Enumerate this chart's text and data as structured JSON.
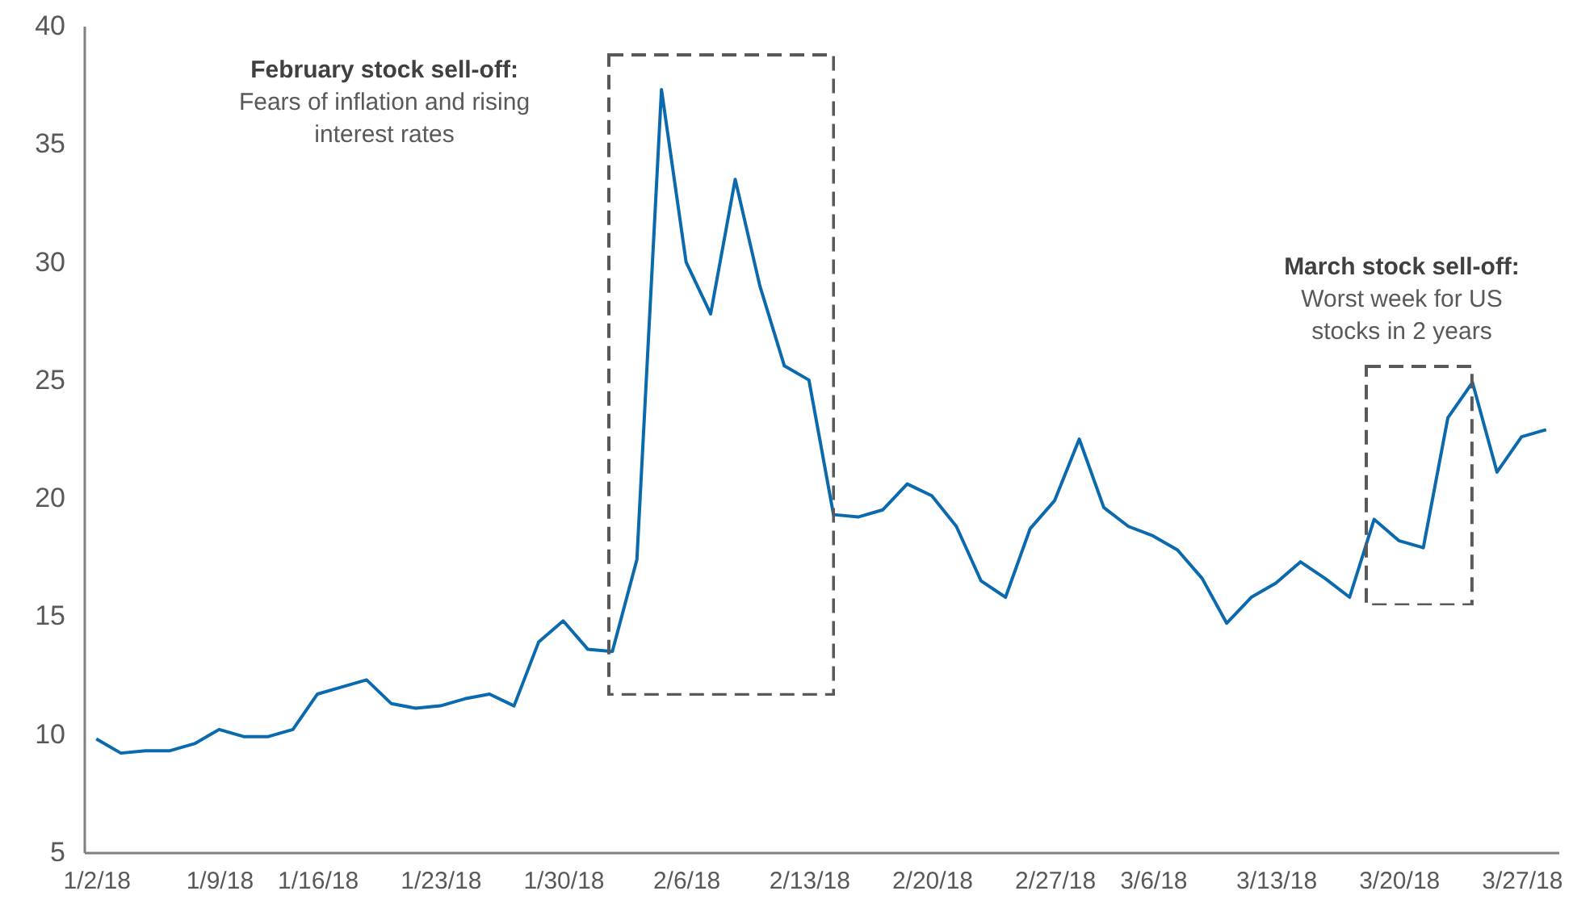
{
  "chart_data": {
    "type": "line",
    "categories": [
      "1/2/18",
      null,
      null,
      null,
      null,
      "1/9/18",
      null,
      null,
      null,
      "1/16/18",
      null,
      null,
      null,
      null,
      "1/23/18",
      null,
      null,
      null,
      null,
      "1/30/18",
      null,
      null,
      null,
      null,
      "2/6/18",
      null,
      null,
      null,
      null,
      "2/13/18",
      null,
      null,
      null,
      null,
      "2/20/18",
      null,
      null,
      null,
      null,
      "2/27/18",
      null,
      null,
      null,
      "3/6/18",
      null,
      null,
      null,
      null,
      "3/13/18",
      null,
      null,
      null,
      null,
      "3/20/18",
      null,
      null,
      null,
      null,
      "3/27/18",
      null
    ],
    "series": [
      {
        "color": "#0a6aad",
        "values": [
          9.8,
          9.2,
          9.3,
          9.3,
          9.6,
          10.2,
          9.9,
          9.9,
          10.2,
          11.7,
          12.0,
          12.3,
          11.3,
          11.1,
          11.2,
          11.5,
          11.7,
          11.2,
          13.9,
          14.8,
          13.6,
          13.5,
          17.4,
          37.3,
          30.0,
          27.8,
          33.5,
          29.0,
          25.6,
          25.0,
          19.3,
          19.2,
          19.5,
          20.6,
          20.1,
          18.8,
          16.5,
          15.8,
          18.7,
          19.9,
          22.5,
          19.6,
          18.8,
          18.4,
          17.8,
          16.6,
          14.7,
          15.8,
          16.4,
          17.3,
          16.6,
          15.8,
          19.1,
          18.2,
          17.9,
          23.4,
          24.9,
          21.1,
          22.6,
          22.9
        ]
      }
    ],
    "ylim": [
      5,
      40
    ],
    "yticks": [
      5,
      10,
      15,
      20,
      25,
      30,
      35,
      40
    ],
    "annotations": [
      "February stock sell-off:",
      "Fears of inflation and rising interest rates",
      "March stock sell-off:",
      "Worst week for US stocks in 2 years"
    ]
  }
}
